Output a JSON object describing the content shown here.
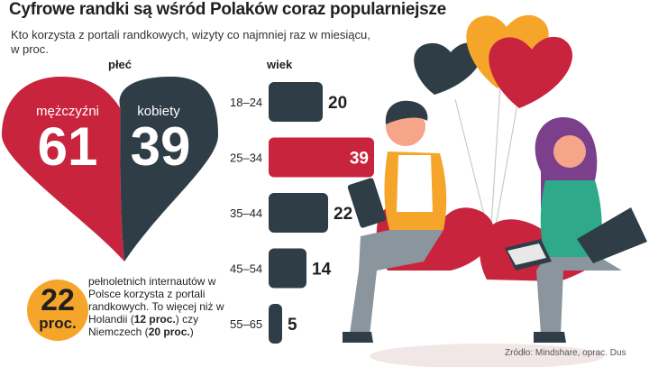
{
  "title": "Cyfrowe randki są wśród Polaków coraz popularniejsze",
  "subtitle": "Kto korzysta z portali randkowych, wizyty co najmniej raz w miesiącu, w proc.",
  "source": "Źródło: Mindshare, oprac. Dus",
  "colors": {
    "red": "#c8243d",
    "dark": "#2f3d47",
    "orange": "#f4a52a"
  },
  "note": {
    "value": "22",
    "unit": "proc.",
    "line1": "pełnoletnich internautów w Polsce korzysta z portali randkowych.",
    "line2a": "To więcej niż w Holandii (",
    "nl_value": "12 proc.",
    "line2b": ") czy Niemczech (",
    "de_value": "20 proc.",
    "line2c": ")"
  },
  "chart_data": [
    {
      "type": "pie",
      "title": "płeć",
      "shape": "heart",
      "slices": [
        {
          "label": "mężczyźni",
          "value": 61,
          "color": "#c8243d"
        },
        {
          "label": "kobiety",
          "value": 39,
          "color": "#2f3d47"
        }
      ]
    },
    {
      "type": "bar",
      "orientation": "horizontal",
      "title": "wiek",
      "categories": [
        "18–24",
        "25–34",
        "35–44",
        "45–54",
        "55–65"
      ],
      "values": [
        20,
        39,
        22,
        14,
        5
      ],
      "highlight_index": 1
    }
  ]
}
